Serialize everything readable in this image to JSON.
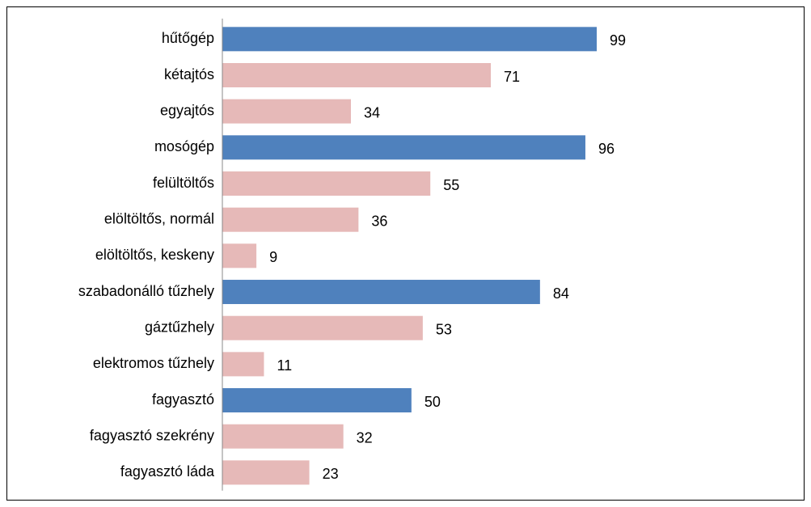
{
  "chart_data": {
    "type": "barh",
    "categories": [
      "hűtőgép",
      "kétajtós",
      "egyajtós",
      "mosógép",
      "felültöltős",
      "elöltöltős, normál",
      "elöltöltős, keskeny",
      "szabadonálló tűzhely",
      "gáztűzhely",
      "elektromos tűzhely",
      "fagyasztó",
      "fagyasztó szekrény",
      "fagyasztó láda"
    ],
    "values": [
      99,
      71,
      34,
      96,
      55,
      36,
      9,
      84,
      53,
      11,
      50,
      32,
      23
    ],
    "colors": [
      "#4f81bd",
      "#e6b9b8",
      "#e6b9b8",
      "#4f81bd",
      "#e6b9b8",
      "#e6b9b8",
      "#e6b9b8",
      "#4f81bd",
      "#e6b9b8",
      "#e6b9b8",
      "#4f81bd",
      "#e6b9b8",
      "#e6b9b8"
    ]
  }
}
